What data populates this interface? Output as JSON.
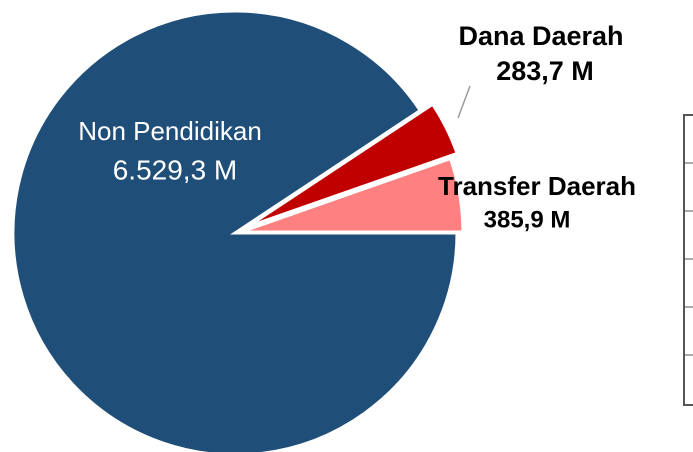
{
  "chart_data": {
    "type": "pie",
    "categories": [
      "Non Pendidikan",
      "Transfer Daerah",
      "Dana Daerah"
    ],
    "values": [
      6529.3,
      385.9,
      283.7
    ],
    "value_labels": [
      "6.529,3 M",
      "385,9 M",
      "283,7 M"
    ],
    "colors": [
      "#1f4e79",
      "#ff8080",
      "#c00000"
    ]
  }
}
